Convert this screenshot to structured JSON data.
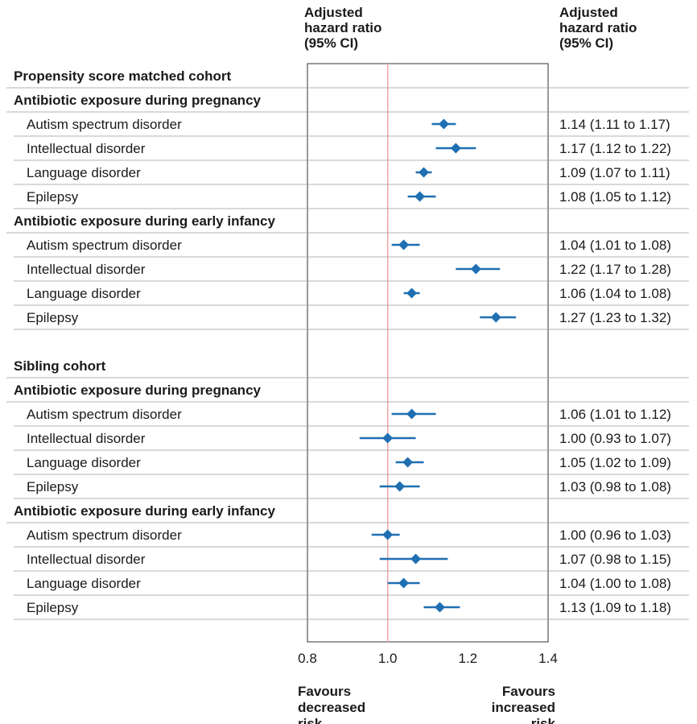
{
  "header": {
    "plot_heading": [
      "Adjusted",
      "hazard ratio",
      "(95% CI)"
    ],
    "value_heading": [
      "Adjusted",
      "hazard ratio",
      "(95% CI)"
    ]
  },
  "footer": {
    "left": [
      "Favours",
      "decreased",
      "risk"
    ],
    "right": [
      "Favours",
      "increased",
      "risk"
    ]
  },
  "colors": {
    "marker": "#1f6fb2",
    "reference": "#f2a6ad",
    "rule": "#9a9a9a"
  },
  "chart_data": {
    "type": "forest",
    "xlim": [
      0.8,
      1.4
    ],
    "xticks": [
      "0.8",
      "1.0",
      "1.2",
      "1.4"
    ],
    "reference_line": 1.0,
    "x_scale": "linear",
    "rows": [
      {
        "kind": "cohort",
        "label": "Propensity score matched cohort"
      },
      {
        "kind": "group",
        "label": "Antibiotic exposure during pregnancy"
      },
      {
        "kind": "outcome",
        "label": "Autism spectrum disorder",
        "hr": 1.14,
        "lo": 1.11,
        "hi": 1.17,
        "text": "1.14 (1.11 to 1.17)"
      },
      {
        "kind": "outcome",
        "label": "Intellectual disorder",
        "hr": 1.17,
        "lo": 1.12,
        "hi": 1.22,
        "text": "1.17 (1.12 to 1.22)"
      },
      {
        "kind": "outcome",
        "label": "Language disorder",
        "hr": 1.09,
        "lo": 1.07,
        "hi": 1.11,
        "text": "1.09 (1.07 to 1.11)"
      },
      {
        "kind": "outcome",
        "label": "Epilepsy",
        "hr": 1.08,
        "lo": 1.05,
        "hi": 1.12,
        "text": "1.08 (1.05 to 1.12)"
      },
      {
        "kind": "group",
        "label": "Antibiotic exposure during early infancy"
      },
      {
        "kind": "outcome",
        "label": "Autism spectrum disorder",
        "hr": 1.04,
        "lo": 1.01,
        "hi": 1.08,
        "text": "1.04 (1.01 to 1.08)"
      },
      {
        "kind": "outcome",
        "label": "Intellectual disorder",
        "hr": 1.22,
        "lo": 1.17,
        "hi": 1.28,
        "text": "1.22 (1.17 to 1.28)"
      },
      {
        "kind": "outcome",
        "label": "Language disorder",
        "hr": 1.06,
        "lo": 1.04,
        "hi": 1.08,
        "text": "1.06 (1.04 to 1.08)"
      },
      {
        "kind": "outcome",
        "label": "Epilepsy",
        "hr": 1.27,
        "lo": 1.23,
        "hi": 1.32,
        "text": "1.27 (1.23 to 1.32)"
      },
      {
        "kind": "spacer"
      },
      {
        "kind": "cohort",
        "label": "Sibling cohort"
      },
      {
        "kind": "group",
        "label": "Antibiotic exposure during pregnancy"
      },
      {
        "kind": "outcome",
        "label": "Autism spectrum disorder",
        "hr": 1.06,
        "lo": 1.01,
        "hi": 1.12,
        "text": "1.06 (1.01 to 1.12)"
      },
      {
        "kind": "outcome",
        "label": "Intellectual disorder",
        "hr": 1.0,
        "lo": 0.93,
        "hi": 1.07,
        "text": "1.00 (0.93 to 1.07)"
      },
      {
        "kind": "outcome",
        "label": "Language disorder",
        "hr": 1.05,
        "lo": 1.02,
        "hi": 1.09,
        "text": "1.05 (1.02 to 1.09)"
      },
      {
        "kind": "outcome",
        "label": "Epilepsy",
        "hr": 1.03,
        "lo": 0.98,
        "hi": 1.08,
        "text": "1.03 (0.98 to 1.08)"
      },
      {
        "kind": "group",
        "label": "Antibiotic exposure during early infancy"
      },
      {
        "kind": "outcome",
        "label": "Autism spectrum disorder",
        "hr": 1.0,
        "lo": 0.96,
        "hi": 1.03,
        "text": "1.00 (0.96 to 1.03)"
      },
      {
        "kind": "outcome",
        "label": "Intellectual disorder",
        "hr": 1.07,
        "lo": 0.98,
        "hi": 1.15,
        "text": "1.07 (0.98 to 1.15)"
      },
      {
        "kind": "outcome",
        "label": "Language disorder",
        "hr": 1.04,
        "lo": 1.0,
        "hi": 1.08,
        "text": "1.04 (1.00 to 1.08)"
      },
      {
        "kind": "outcome",
        "label": "Epilepsy",
        "hr": 1.13,
        "lo": 1.09,
        "hi": 1.18,
        "text": "1.13 (1.09 to 1.18)"
      }
    ]
  }
}
